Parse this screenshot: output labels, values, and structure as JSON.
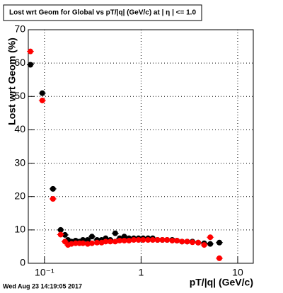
{
  "chart_data": {
    "type": "scatter",
    "title": "Lost wrt Geom for Global vs pT/|q| (GeV/c) at |  η | <= 1.0",
    "x_label": "pT/|q| (GeV/c)",
    "y_label": "Lost wrt Geom (%)",
    "timestamp": "Wed Aug 23 14:19:05 2017",
    "log_x": true,
    "grid": true,
    "xlim": [
      0.068,
      14.5
    ],
    "ylim": [
      0,
      70
    ],
    "xticks": [
      {
        "value": 0.1,
        "label": "10⁻¹"
      },
      1,
      10
    ],
    "yticks": [
      0,
      10,
      20,
      30,
      40,
      50,
      60,
      70
    ],
    "x": [
      0.0715,
      0.095,
      0.1224,
      0.147,
      0.163,
      0.175,
      0.19,
      0.21,
      0.23,
      0.25,
      0.28,
      0.31,
      0.35,
      0.39,
      0.43,
      0.48,
      0.54,
      0.6,
      0.67,
      0.75,
      0.84,
      0.94,
      1.05,
      1.18,
      1.32,
      1.48,
      1.66,
      1.86,
      2.1,
      2.35,
      2.65,
      3.0,
      3.4,
      3.9,
      4.5,
      5.2,
      6.46
    ],
    "series": [
      {
        "color": "#000000",
        "values": [
          59.5,
          51,
          22.3,
          10,
          8.5,
          7,
          6.5,
          6.8,
          6.5,
          7,
          7,
          8,
          7,
          7,
          7.5,
          7,
          9,
          7.5,
          8,
          7.5,
          7.5,
          7.5,
          7.5,
          7.5,
          7.5,
          7,
          7,
          7,
          7,
          6.8,
          6.5,
          6.5,
          6.5,
          6.2,
          6,
          5.8,
          6.2
        ]
      },
      {
        "color": "#ff0000",
        "values": [
          63.5,
          48.8,
          19.3,
          8.6,
          6.5,
          5.5,
          5.8,
          6,
          6,
          6,
          5.8,
          6,
          6.2,
          6.2,
          6.5,
          6.5,
          6.5,
          6.8,
          6.8,
          6.8,
          7,
          7,
          7,
          7,
          7,
          7,
          7,
          7,
          6.8,
          6.8,
          6.5,
          6.5,
          6.3,
          6.2,
          5.5,
          7.8,
          1.5
        ]
      }
    ]
  }
}
